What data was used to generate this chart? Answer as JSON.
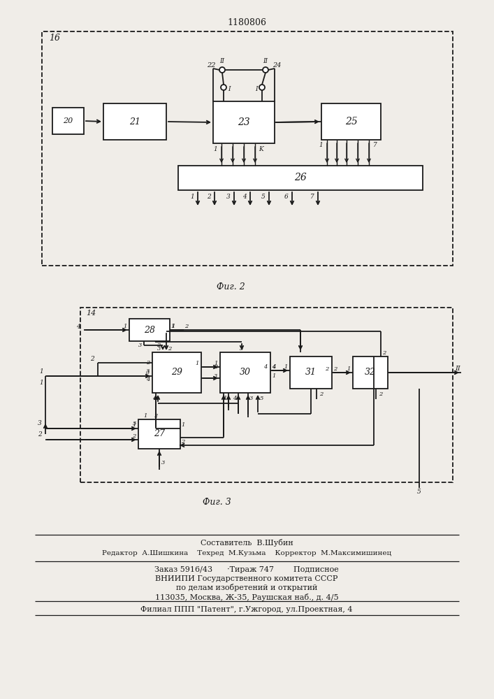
{
  "title": "1180806",
  "fig2_label": "16",
  "fig3_label": "14",
  "caption2": "Фиг. 2",
  "caption3": "Фиг. 3",
  "footer_line1": "Составитель  В.Шубин",
  "footer_line2": "Редактор  А.Шишкина    Техред  М.Кузьма    Корректор  М.Максимишинец",
  "footer_line3": "Заказ 5916/43      ·Тираж 747        Подписное",
  "footer_line4": "ВНИИПИ Государственного комитета СССР",
  "footer_line5": "по делам изобретений и открытий",
  "footer_line6": "113035, Москва, Ж-35, Раушская наб., д. 4/5",
  "footer_line7": "Филиал ППП \"Патент\", г.Ужгород, ул.Проектная, 4",
  "bg_color": "#f0ede8",
  "line_color": "#1a1a1a"
}
